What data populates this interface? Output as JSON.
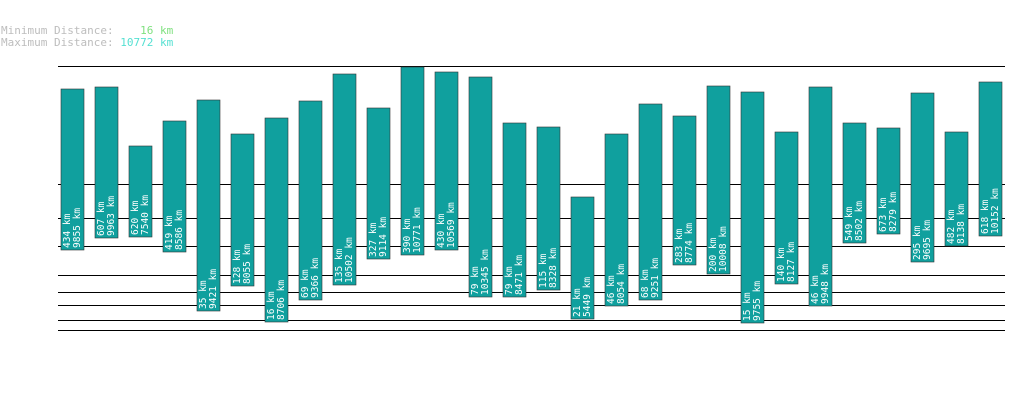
{
  "legend": {
    "min_label": "Minimum Distance:",
    "min_value": "16 km",
    "max_label": "Maximum Distance:",
    "max_value": "10772 km"
  },
  "colors": {
    "bar": "#10a09e",
    "min_text": "#7fe07f",
    "max_text": "#55e0d2",
    "label_text": "#bdbdbd",
    "line": "#000000"
  },
  "chart_data": {
    "type": "bar",
    "description_of_bars": "Each column spans from a minimum distance (bottom) to a maximum distance (top).",
    "series": [
      {
        "min": 434,
        "max": 9855
      },
      {
        "min": 607,
        "max": 9963
      },
      {
        "min": 620,
        "max": 7540
      },
      {
        "min": 419,
        "max": 8586
      },
      {
        "min": 35,
        "max": 9421
      },
      {
        "min": 128,
        "max": 8055
      },
      {
        "min": 16,
        "max": 8706
      },
      {
        "min": 69,
        "max": 9366
      },
      {
        "min": 135,
        "max": 10502
      },
      {
        "min": 327,
        "max": 9114
      },
      {
        "min": 390,
        "max": 10771
      },
      {
        "min": 430,
        "max": 10569
      },
      {
        "min": 79,
        "max": 10345
      },
      {
        "min": 79,
        "max": 8471
      },
      {
        "min": 115,
        "max": 8328
      },
      {
        "min": 21,
        "max": 5449
      },
      {
        "min": 46,
        "max": 8054
      },
      {
        "min": 68,
        "max": 9251
      },
      {
        "min": 283,
        "max": 8774
      },
      {
        "min": 200,
        "max": 10008
      },
      {
        "min": 15,
        "max": 9755
      },
      {
        "min": 140,
        "max": 8127
      },
      {
        "min": 46,
        "max": 9948
      },
      {
        "min": 549,
        "max": 8502
      },
      {
        "min": 673,
        "max": 8279
      },
      {
        "min": 295,
        "max": 9695
      },
      {
        "min": 482,
        "max": 8138
      },
      {
        "min": 618,
        "max": 10152
      }
    ],
    "unit": "km",
    "grid": true
  }
}
